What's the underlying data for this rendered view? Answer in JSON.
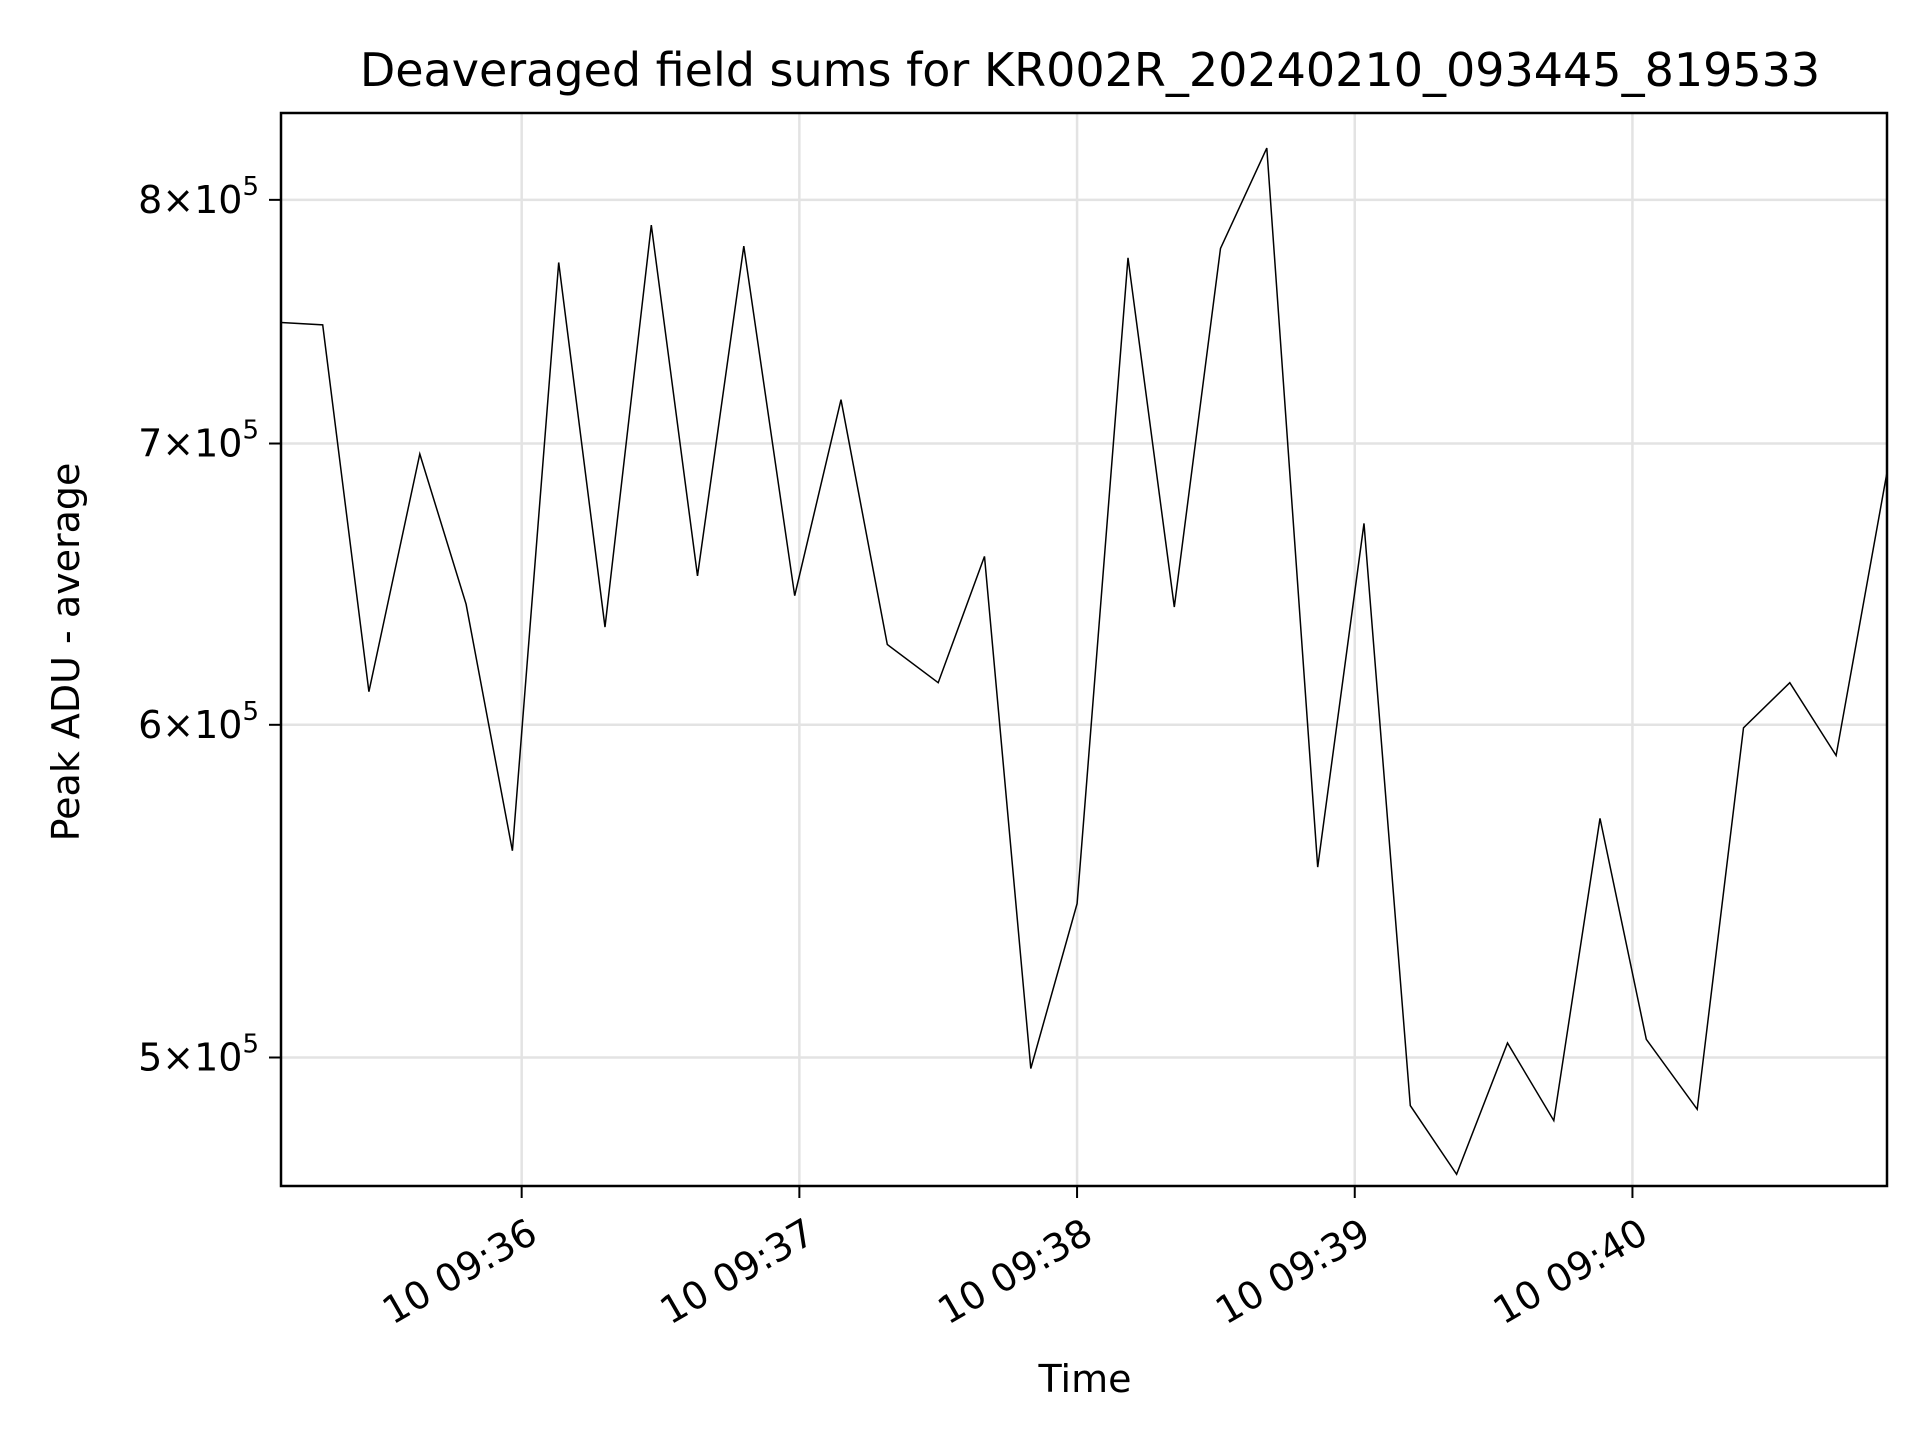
{
  "chart_data": {
    "type": "line",
    "title": "Deaveraged field sums for KR002R_20240210_093445_819533",
    "xlabel": "Time",
    "ylabel": "Peak ADU - average",
    "yscale": "log",
    "grid": true,
    "xlim": [
      "2024-02-10 09:35:08",
      "2024-02-10 09:40:55"
    ],
    "ylim": [
      466000,
      839000
    ],
    "x_ticks": [
      {
        "value": "2024-02-10 09:36:00",
        "label": "10 09:36"
      },
      {
        "value": "2024-02-10 09:37:00",
        "label": "10 09:37"
      },
      {
        "value": "2024-02-10 09:38:00",
        "label": "10 09:38"
      },
      {
        "value": "2024-02-10 09:39:00",
        "label": "10 09:39"
      },
      {
        "value": "2024-02-10 09:40:00",
        "label": "10 09:40"
      }
    ],
    "y_ticks": [
      {
        "value": 500000,
        "mantissa": "5",
        "base": "10",
        "exp": "5"
      },
      {
        "value": 600000,
        "mantissa": "6",
        "base": "10",
        "exp": "5"
      },
      {
        "value": 700000,
        "mantissa": "7",
        "base": "10",
        "exp": "5"
      },
      {
        "value": 800000,
        "mantissa": "8",
        "base": "10",
        "exp": "5"
      }
    ],
    "series": [
      {
        "color": "#000000",
        "x": [
          "2024-02-10 09:35:08",
          "2024-02-10 09:35:17",
          "2024-02-10 09:35:27",
          "2024-02-10 09:35:38",
          "2024-02-10 09:35:48",
          "2024-02-10 09:35:58",
          "2024-02-10 09:36:08",
          "2024-02-10 09:36:18",
          "2024-02-10 09:36:28",
          "2024-02-10 09:36:38",
          "2024-02-10 09:36:48",
          "2024-02-10 09:36:59",
          "2024-02-10 09:37:09",
          "2024-02-10 09:37:19",
          "2024-02-10 09:37:30",
          "2024-02-10 09:37:40",
          "2024-02-10 09:37:50",
          "2024-02-10 09:38:00",
          "2024-02-10 09:38:11",
          "2024-02-10 09:38:21",
          "2024-02-10 09:38:31",
          "2024-02-10 09:38:41",
          "2024-02-10 09:38:52",
          "2024-02-10 09:39:02",
          "2024-02-10 09:39:12",
          "2024-02-10 09:39:22",
          "2024-02-10 09:39:33",
          "2024-02-10 09:39:43",
          "2024-02-10 09:39:53",
          "2024-02-10 09:40:03",
          "2024-02-10 09:40:14",
          "2024-02-10 09:40:24",
          "2024-02-10 09:40:34",
          "2024-02-10 09:40:44",
          "2024-02-10 09:40:55"
        ],
        "y": [
          748000,
          747000,
          611000,
          696000,
          641000,
          560000,
          773000,
          633000,
          789000,
          651000,
          780000,
          644000,
          717000,
          627000,
          614000,
          658000,
          497000,
          544000,
          775000,
          640000,
          779000,
          823000,
          555000,
          670000,
          487000,
          469000,
          504000,
          483000,
          570000,
          505000,
          486000,
          599000,
          614000,
          590000,
          689000
        ]
      }
    ]
  }
}
